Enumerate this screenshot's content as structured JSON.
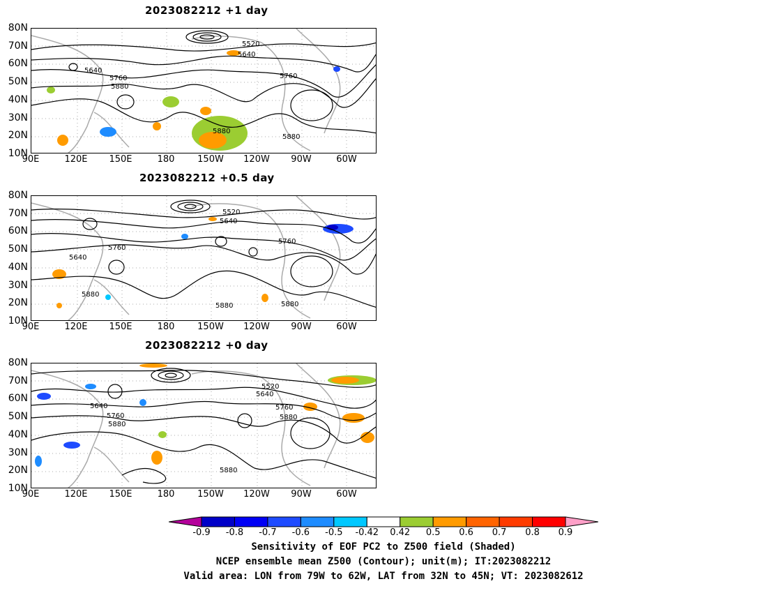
{
  "panels": [
    {
      "title": "2023082212 +1 day"
    },
    {
      "title": "2023082212 +0.5 day"
    },
    {
      "title": "2023082212 +0 day"
    }
  ],
  "lat_labels": [
    "80N",
    "70N",
    "60N",
    "50N",
    "40N",
    "30N",
    "20N",
    "10N"
  ],
  "lon_labels": [
    "90E",
    "120E",
    "150E",
    "180",
    "150W",
    "120W",
    "90W",
    "60W"
  ],
  "contour_labels": {
    "p1": [
      "5520",
      "5640",
      "5640",
      "5760",
      "5880",
      "5760",
      "5880",
      "5880"
    ],
    "p2": [
      "5520",
      "5640",
      "5760",
      "5640",
      "5760",
      "5880",
      "5880",
      "5880"
    ],
    "p3": [
      "5520",
      "5640",
      "5640",
      "5760",
      "5880",
      "5760",
      "5880",
      "5880"
    ]
  },
  "colorbar": {
    "ticks": [
      "-0.9",
      "-0.8",
      "-0.7",
      "-0.6",
      "-0.5",
      "-0.42",
      "0.42",
      "0.5",
      "0.6",
      "0.7",
      "0.8",
      "0.9"
    ],
    "colors": [
      "#0000c8",
      "#0000f5",
      "#1e4bff",
      "#1e8cff",
      "#00c8ff",
      "#ffffff",
      "#9bcd32",
      "#ff9b00",
      "#ff6400",
      "#ff3c00",
      "#ff0000"
    ],
    "low_arrow_color": "#b4009b",
    "high_arrow_color": "#ffa0c8"
  },
  "caption": {
    "line1": "Sensitivity of EOF PC2 to Z500 field (Shaded)",
    "line2": "NCEP ensemble mean Z500 (Contour); unit(m); IT:2023082212",
    "line3": "Valid area: LON from 79W to 62W, LAT from 32N to 45N; VT: 2023082612"
  }
}
